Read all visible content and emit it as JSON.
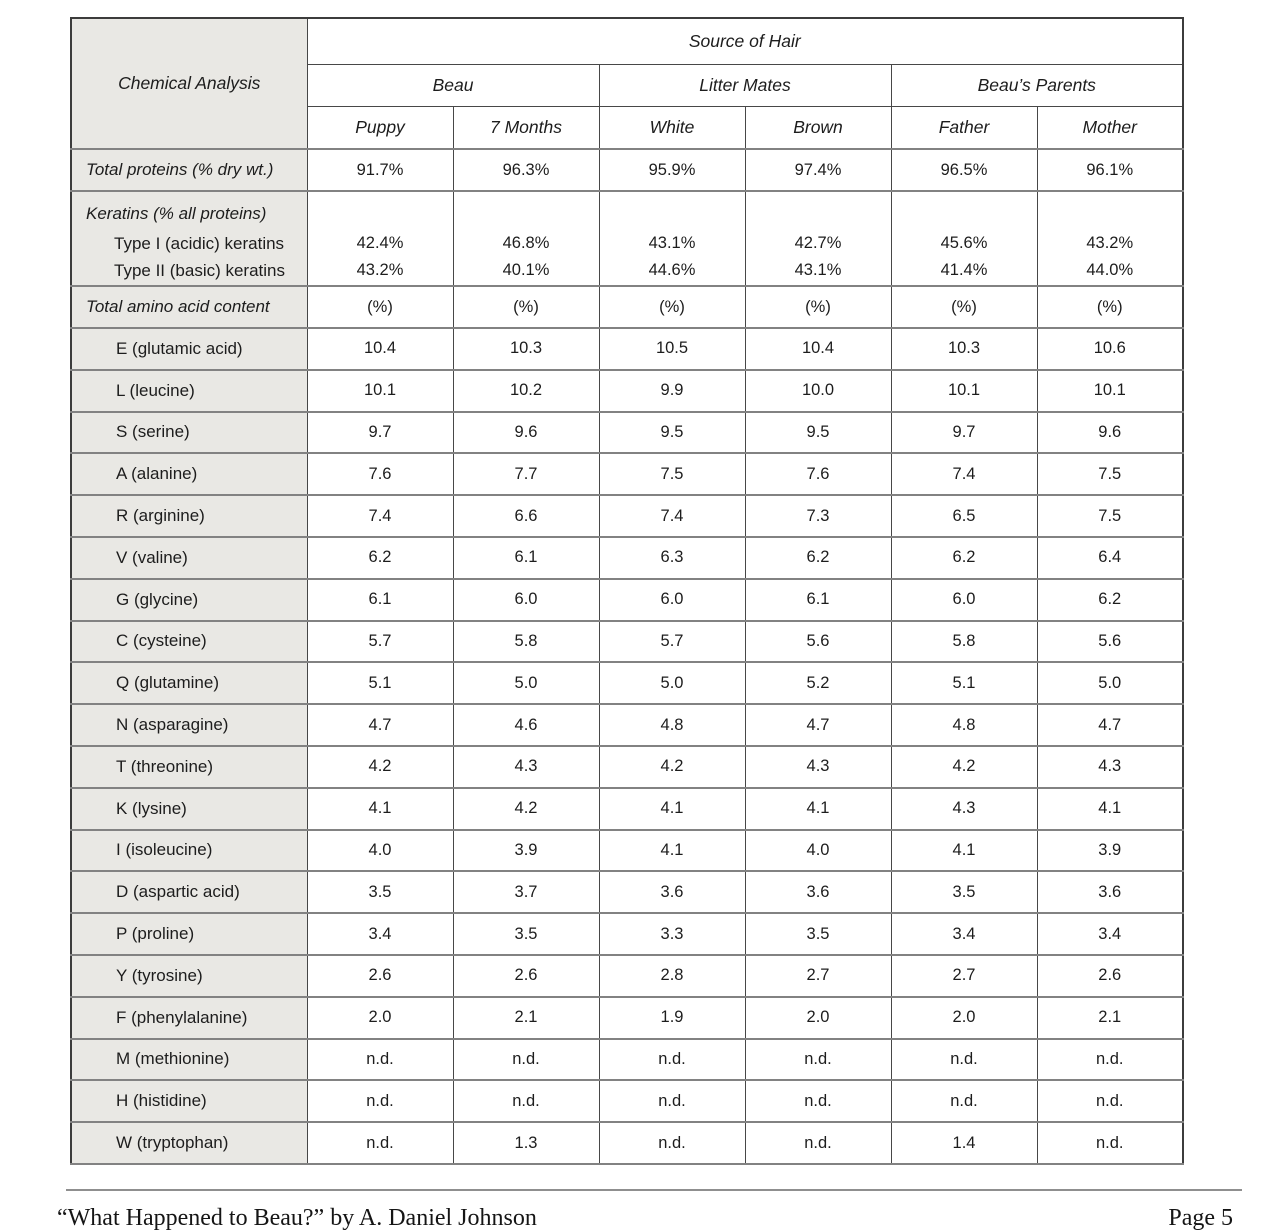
{
  "colors": {
    "label_column_bg": "#e9e8e4",
    "border_dark": "#474747",
    "row_separator": "#828282",
    "text": "#1d1d1d"
  },
  "table": {
    "corner_label": "Chemical Analysis",
    "top_header": "Source of Hair",
    "groups": [
      {
        "label": "Beau",
        "columns": [
          "Puppy",
          "7 Months"
        ]
      },
      {
        "label": "Litter Mates",
        "columns": [
          "White",
          "Brown"
        ]
      },
      {
        "label": "Beau’s Parents",
        "columns": [
          "Father",
          "Mother"
        ]
      }
    ],
    "total_proteins": {
      "label": "Total proteins (% dry wt.)",
      "values": [
        "91.7%",
        "96.3%",
        "95.9%",
        "97.4%",
        "96.5%",
        "96.1%"
      ]
    },
    "keratins": {
      "label": "Keratins (% all proteins)",
      "subrows": [
        {
          "label": "Type I (acidic) keratins",
          "values": [
            "42.4%",
            "46.8%",
            "43.1%",
            "42.7%",
            "45.6%",
            "43.2%"
          ]
        },
        {
          "label": "Type II (basic) keratins",
          "values": [
            "43.2%",
            "40.1%",
            "44.6%",
            "43.1%",
            "41.4%",
            "44.0%"
          ]
        }
      ]
    },
    "amino_header": {
      "label": "Total amino acid content",
      "values": [
        "(%)",
        "(%)",
        "(%)",
        "(%)",
        "(%)",
        "(%)"
      ]
    },
    "amino_rows": [
      {
        "label": "E (glutamic acid)",
        "values": [
          "10.4",
          "10.3",
          "10.5",
          "10.4",
          "10.3",
          "10.6"
        ]
      },
      {
        "label": "L (leucine)",
        "values": [
          "10.1",
          "10.2",
          "9.9",
          "10.0",
          "10.1",
          "10.1"
        ]
      },
      {
        "label": "S (serine)",
        "values": [
          "9.7",
          "9.6",
          "9.5",
          "9.5",
          "9.7",
          "9.6"
        ]
      },
      {
        "label": "A (alanine)",
        "values": [
          "7.6",
          "7.7",
          "7.5",
          "7.6",
          "7.4",
          "7.5"
        ]
      },
      {
        "label": "R (arginine)",
        "values": [
          "7.4",
          "6.6",
          "7.4",
          "7.3",
          "6.5",
          "7.5"
        ]
      },
      {
        "label": "V (valine)",
        "values": [
          "6.2",
          "6.1",
          "6.3",
          "6.2",
          "6.2",
          "6.4"
        ]
      },
      {
        "label": "G (glycine)",
        "values": [
          "6.1",
          "6.0",
          "6.0",
          "6.1",
          "6.0",
          "6.2"
        ]
      },
      {
        "label": "C (cysteine)",
        "values": [
          "5.7",
          "5.8",
          "5.7",
          "5.6",
          "5.8",
          "5.6"
        ]
      },
      {
        "label": "Q (glutamine)",
        "values": [
          "5.1",
          "5.0",
          "5.0",
          "5.2",
          "5.1",
          "5.0"
        ]
      },
      {
        "label": "N (asparagine)",
        "values": [
          "4.7",
          "4.6",
          "4.8",
          "4.7",
          "4.8",
          "4.7"
        ]
      },
      {
        "label": "T (threonine)",
        "values": [
          "4.2",
          "4.3",
          "4.2",
          "4.3",
          "4.2",
          "4.3"
        ]
      },
      {
        "label": "K (lysine)",
        "values": [
          "4.1",
          "4.2",
          "4.1",
          "4.1",
          "4.3",
          "4.1"
        ]
      },
      {
        "label": "I (isoleucine)",
        "values": [
          "4.0",
          "3.9",
          "4.1",
          "4.0",
          "4.1",
          "3.9"
        ]
      },
      {
        "label": "D (aspartic acid)",
        "values": [
          "3.5",
          "3.7",
          "3.6",
          "3.6",
          "3.5",
          "3.6"
        ]
      },
      {
        "label": "P (proline)",
        "values": [
          "3.4",
          "3.5",
          "3.3",
          "3.5",
          "3.4",
          "3.4"
        ]
      },
      {
        "label": "Y (tyrosine)",
        "values": [
          "2.6",
          "2.6",
          "2.8",
          "2.7",
          "2.7",
          "2.6"
        ]
      },
      {
        "label": "F (phenylalanine)",
        "values": [
          "2.0",
          "2.1",
          "1.9",
          "2.0",
          "2.0",
          "2.1"
        ]
      },
      {
        "label": "M (methionine)",
        "values": [
          "n.d.",
          "n.d.",
          "n.d.",
          "n.d.",
          "n.d.",
          "n.d."
        ]
      },
      {
        "label": "H (histidine)",
        "values": [
          "n.d.",
          "n.d.",
          "n.d.",
          "n.d.",
          "n.d.",
          "n.d."
        ]
      },
      {
        "label": "W (tryptophan)",
        "values": [
          "n.d.",
          "1.3",
          "n.d.",
          "n.d.",
          "1.4",
          "n.d."
        ]
      }
    ]
  },
  "footer": {
    "left": "“What Happened to Beau?” by A. Daniel Johnson",
    "right": "Page 5"
  }
}
